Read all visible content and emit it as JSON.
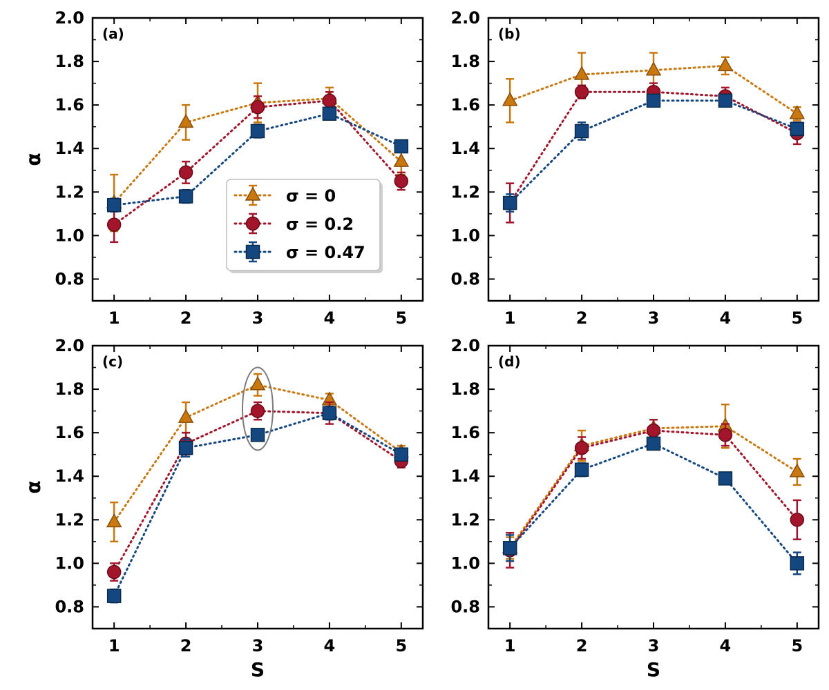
{
  "chart_data": {
    "type": "line",
    "layout": "2x2 subplots",
    "shared_x_label": "S",
    "shared_y_label": "α",
    "x_ticks": [
      "1",
      "2",
      "3",
      "4",
      "5"
    ],
    "y_ticks": [
      "0.8",
      "1.0",
      "1.2",
      "1.4",
      "1.6",
      "1.8",
      "2.0"
    ],
    "xlim": [
      0.7,
      5.3
    ],
    "ylim": [
      0.7,
      2.0
    ],
    "legend": {
      "placement": "center (panel a)",
      "entries": [
        {
          "label_sigma": "σ",
          "label_eq": " = 0",
          "color": "#c8780f",
          "marker": "triangle"
        },
        {
          "label_sigma": "σ",
          "label_eq": " = 0.2",
          "color": "#a3152a",
          "marker": "circle"
        },
        {
          "label_sigma": "σ",
          "label_eq": " = 0.47",
          "color": "#14477f",
          "marker": "square"
        }
      ]
    },
    "series_styles": [
      {
        "name": "σ = 0",
        "color": "#c8780f",
        "edge": "#8a4e08",
        "marker": "triangle"
      },
      {
        "name": "σ = 0.2",
        "color": "#a3152a",
        "edge": "#6a0a18",
        "marker": "circle"
      },
      {
        "name": "σ = 0.47",
        "color": "#14477f",
        "edge": "#0a2a4d",
        "marker": "square"
      }
    ],
    "panels": [
      {
        "label": "(a)",
        "series": [
          {
            "name": "σ = 0",
            "x": [
              1,
              2,
              3,
              4,
              5
            ],
            "y": [
              1.15,
              1.52,
              1.61,
              1.63,
              1.34
            ],
            "err": [
              0.13,
              0.08,
              0.09,
              0.05,
              0.06
            ]
          },
          {
            "name": "σ = 0.2",
            "x": [
              1,
              2,
              3,
              4,
              5
            ],
            "y": [
              1.05,
              1.29,
              1.59,
              1.62,
              1.25
            ],
            "err": [
              0.08,
              0.05,
              0.05,
              0.04,
              0.04
            ]
          },
          {
            "name": "σ = 0.47",
            "x": [
              1,
              2,
              3,
              4,
              5
            ],
            "y": [
              1.14,
              1.18,
              1.48,
              1.56,
              1.41
            ],
            "err": [
              0.03,
              0.03,
              0.03,
              0.02,
              0.02
            ]
          }
        ]
      },
      {
        "label": "(b)",
        "series": [
          {
            "name": "σ = 0",
            "x": [
              1,
              2,
              3,
              4,
              5
            ],
            "y": [
              1.62,
              1.74,
              1.76,
              1.78,
              1.56
            ],
            "err": [
              0.1,
              0.1,
              0.08,
              0.04,
              0.03
            ]
          },
          {
            "name": "σ = 0.2",
            "x": [
              1,
              2,
              3,
              4,
              5
            ],
            "y": [
              1.15,
              1.66,
              1.66,
              1.64,
              1.47
            ],
            "err": [
              0.09,
              0.03,
              0.04,
              0.04,
              0.05
            ]
          },
          {
            "name": "σ = 0.47",
            "x": [
              1,
              2,
              3,
              4,
              5
            ],
            "y": [
              1.15,
              1.48,
              1.62,
              1.62,
              1.49
            ],
            "err": [
              0.04,
              0.04,
              0.02,
              0.02,
              0.03
            ]
          }
        ]
      },
      {
        "label": "(c)",
        "highlight_x": 3,
        "series": [
          {
            "name": "σ = 0",
            "x": [
              1,
              2,
              3,
              4,
              5
            ],
            "y": [
              1.19,
              1.67,
              1.82,
              1.75,
              1.51
            ],
            "err": [
              0.09,
              0.07,
              0.05,
              0.03,
              0.03
            ]
          },
          {
            "name": "σ = 0.2",
            "x": [
              1,
              2,
              3,
              4,
              5
            ],
            "y": [
              0.96,
              1.55,
              1.7,
              1.69,
              1.47
            ],
            "err": [
              0.04,
              0.05,
              0.04,
              0.05,
              0.03
            ]
          },
          {
            "name": "σ = 0.47",
            "x": [
              1,
              2,
              3,
              4,
              5
            ],
            "y": [
              0.85,
              1.53,
              1.59,
              1.69,
              1.5
            ],
            "err": [
              0.03,
              0.04,
              0.02,
              0.03,
              0.02
            ]
          }
        ]
      },
      {
        "label": "(d)",
        "series": [
          {
            "name": "σ = 0",
            "x": [
              1,
              2,
              3,
              4,
              5
            ],
            "y": [
              1.07,
              1.54,
              1.62,
              1.63,
              1.42
            ],
            "err": [
              0.05,
              0.07,
              0.04,
              0.1,
              0.06
            ]
          },
          {
            "name": "σ = 0.2",
            "x": [
              1,
              2,
              3,
              4,
              5
            ],
            "y": [
              1.06,
              1.53,
              1.61,
              1.59,
              1.2
            ],
            "err": [
              0.08,
              0.05,
              0.05,
              0.05,
              0.09
            ]
          },
          {
            "name": "σ = 0.47",
            "x": [
              1,
              2,
              3,
              4,
              5
            ],
            "y": [
              1.07,
              1.43,
              1.55,
              1.39,
              1.0
            ],
            "err": [
              0.06,
              0.03,
              0.02,
              0.02,
              0.05
            ]
          }
        ]
      }
    ]
  }
}
